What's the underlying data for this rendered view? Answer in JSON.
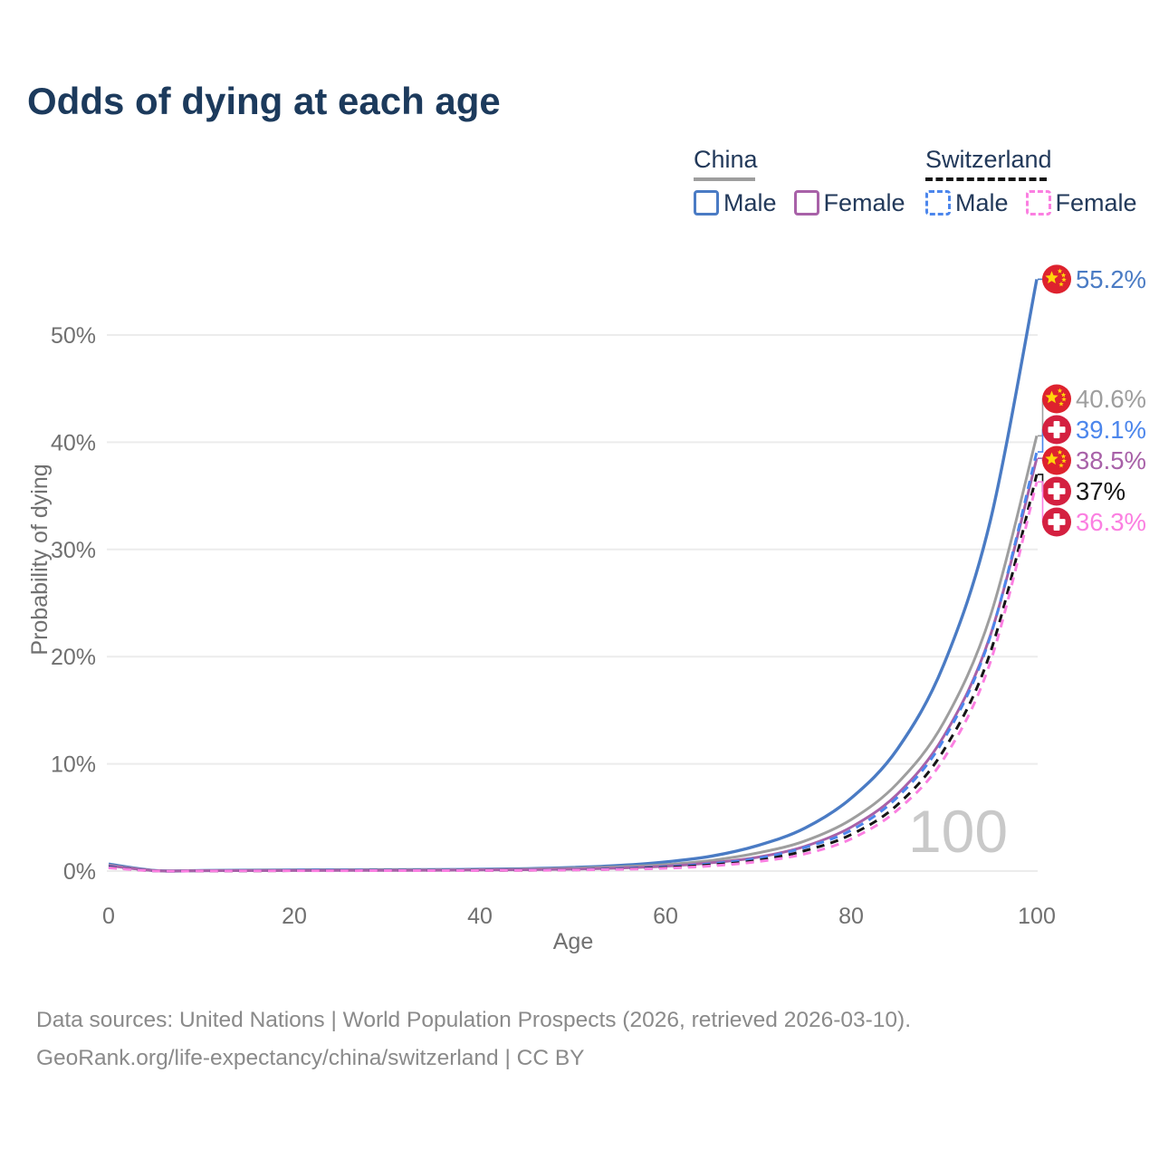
{
  "title": "Odds of dying at each age",
  "legend": {
    "groups": [
      {
        "id": "china",
        "label": "China",
        "line_style": "solid",
        "line_color": "#9e9e9e",
        "items": [
          {
            "label": "Male",
            "color": "#4a7bc4",
            "style": "solid"
          },
          {
            "label": "Female",
            "color": "#a861a8",
            "style": "solid"
          }
        ]
      },
      {
        "id": "switzerland",
        "label": "Switzerland",
        "line_style": "dashed",
        "line_color": "#151515",
        "items": [
          {
            "label": "Male",
            "color": "#4c86ec",
            "style": "dashed"
          },
          {
            "label": "Female",
            "color": "#fb7fe1",
            "style": "dashed"
          }
        ]
      }
    ]
  },
  "chart_data": {
    "type": "line",
    "title": "Odds of dying at each age",
    "xlabel": "Age",
    "ylabel": "Probability of dying",
    "xlim": [
      0,
      100
    ],
    "ylim": [
      0,
      56
    ],
    "grid": true,
    "legend_position": "top-right",
    "watermark": "100",
    "x_ticks": [
      0,
      20,
      40,
      60,
      80,
      100
    ],
    "y_ticks": [
      {
        "value": 0,
        "label": "0%"
      },
      {
        "value": 10,
        "label": "10%"
      },
      {
        "value": 20,
        "label": "20%"
      },
      {
        "value": 30,
        "label": "30%"
      },
      {
        "value": 40,
        "label": "40%"
      },
      {
        "value": 50,
        "label": "50%"
      }
    ],
    "x": [
      0,
      5,
      10,
      15,
      20,
      25,
      30,
      35,
      40,
      45,
      50,
      55,
      60,
      65,
      70,
      75,
      80,
      85,
      90,
      95,
      100
    ],
    "series": [
      {
        "id": "china-male",
        "country": "China",
        "sex": "Male",
        "color": "#4a7bc4",
        "dashed": false,
        "flag": "china",
        "end_label": "55.2%",
        "values": [
          0.65,
          0.05,
          0.05,
          0.08,
          0.1,
          0.11,
          0.12,
          0.13,
          0.16,
          0.22,
          0.33,
          0.52,
          0.85,
          1.4,
          2.4,
          4.0,
          6.8,
          11.4,
          19.3,
          32.7,
          55.2
        ]
      },
      {
        "id": "china-total",
        "country": "China",
        "sex": "Both",
        "color": "#9e9e9e",
        "dashed": false,
        "flag": "china",
        "end_label": "40.6%",
        "values": [
          0.55,
          0.04,
          0.04,
          0.06,
          0.08,
          0.09,
          0.1,
          0.11,
          0.13,
          0.18,
          0.26,
          0.4,
          0.6,
          1.0,
          1.7,
          2.8,
          4.8,
          8.2,
          13.9,
          23.8,
          40.6
        ]
      },
      {
        "id": "china-female",
        "country": "China",
        "sex": "Female",
        "color": "#a861a8",
        "dashed": false,
        "flag": "china",
        "end_label": "38.5%",
        "values": [
          0.5,
          0.04,
          0.03,
          0.04,
          0.05,
          0.06,
          0.07,
          0.08,
          0.1,
          0.13,
          0.18,
          0.28,
          0.46,
          0.78,
          1.3,
          2.3,
          4.1,
          7.2,
          12.6,
          22.0,
          38.5
        ]
      },
      {
        "id": "switzerland-male",
        "country": "Switzerland",
        "sex": "Male",
        "color": "#4c86ec",
        "dashed": true,
        "flag": "switzerland",
        "end_label": "39.1%",
        "values": [
          0.4,
          0.02,
          0.01,
          0.03,
          0.06,
          0.06,
          0.06,
          0.07,
          0.08,
          0.1,
          0.14,
          0.23,
          0.4,
          0.69,
          1.2,
          2.2,
          3.8,
          6.9,
          12.3,
          21.9,
          39.1
        ]
      },
      {
        "id": "switzerland-total",
        "country": "Switzerland",
        "sex": "Both",
        "color": "#151515",
        "dashed": true,
        "flag": "switzerland",
        "end_label": "37%",
        "values": [
          0.35,
          0.02,
          0.01,
          0.02,
          0.04,
          0.04,
          0.05,
          0.05,
          0.06,
          0.08,
          0.12,
          0.19,
          0.33,
          0.58,
          1.0,
          1.9,
          3.4,
          6.2,
          11.3,
          20.4,
          37.0
        ]
      },
      {
        "id": "switzerland-female",
        "country": "Switzerland",
        "sex": "Female",
        "color": "#fb7fe1",
        "dashed": true,
        "flag": "switzerland",
        "end_label": "36.3%",
        "values": [
          0.3,
          0.01,
          0.01,
          0.02,
          0.03,
          0.03,
          0.04,
          0.04,
          0.05,
          0.07,
          0.1,
          0.16,
          0.26,
          0.48,
          0.89,
          1.6,
          3.0,
          5.7,
          10.5,
          19.5,
          36.3
        ]
      }
    ]
  },
  "footer": {
    "line1": "Data sources: United Nations | World Population Prospects (2026, retrieved 2026-03-10).",
    "line2": "GeoRank.org/life-expectancy/china/switzerland | CC BY"
  },
  "colors": {
    "title_text": "#1c3a5c",
    "legend_text": "#22395a",
    "axis_text": "#707070",
    "gridline": "#ececec",
    "footer_text": "#8a8a8a",
    "watermark": "#c9c9c9",
    "flag_red_china": "#de222e",
    "flag_red_switzerland": "#d42040",
    "flag_star_yellow": "#ffd60a"
  }
}
